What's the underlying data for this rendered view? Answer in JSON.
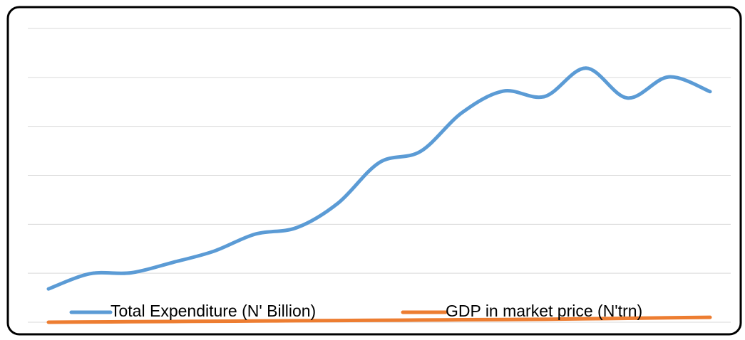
{
  "chart_data": {
    "type": "line",
    "categories": [
      null,
      null,
      null,
      null,
      null,
      null,
      null,
      null,
      null,
      null,
      null,
      null,
      null,
      null,
      null,
      null,
      null
    ],
    "series": [
      {
        "name": "Total Expenditure (N' Billion)",
        "color": "#5b9bd5",
        "values": [
          0.68,
          0.99,
          1.01,
          1.22,
          1.45,
          1.8,
          1.93,
          2.43,
          3.26,
          3.49,
          4.28,
          4.72,
          4.61,
          5.19,
          4.58,
          5.01,
          4.71
        ]
      },
      {
        "name": "GDP in market price (N'trn)",
        "color": "#ed7d31",
        "values": [
          0.0,
          0.005,
          0.01,
          0.015,
          0.02,
          0.025,
          0.03,
          0.035,
          0.04,
          0.045,
          0.05,
          0.055,
          0.06,
          0.07,
          0.08,
          0.09,
          0.1
        ]
      }
    ],
    "ylim": [
      0,
      6
    ],
    "yticks": [
      0,
      1,
      2,
      3,
      4,
      5,
      6
    ],
    "grid": true,
    "legend": "bottom"
  }
}
